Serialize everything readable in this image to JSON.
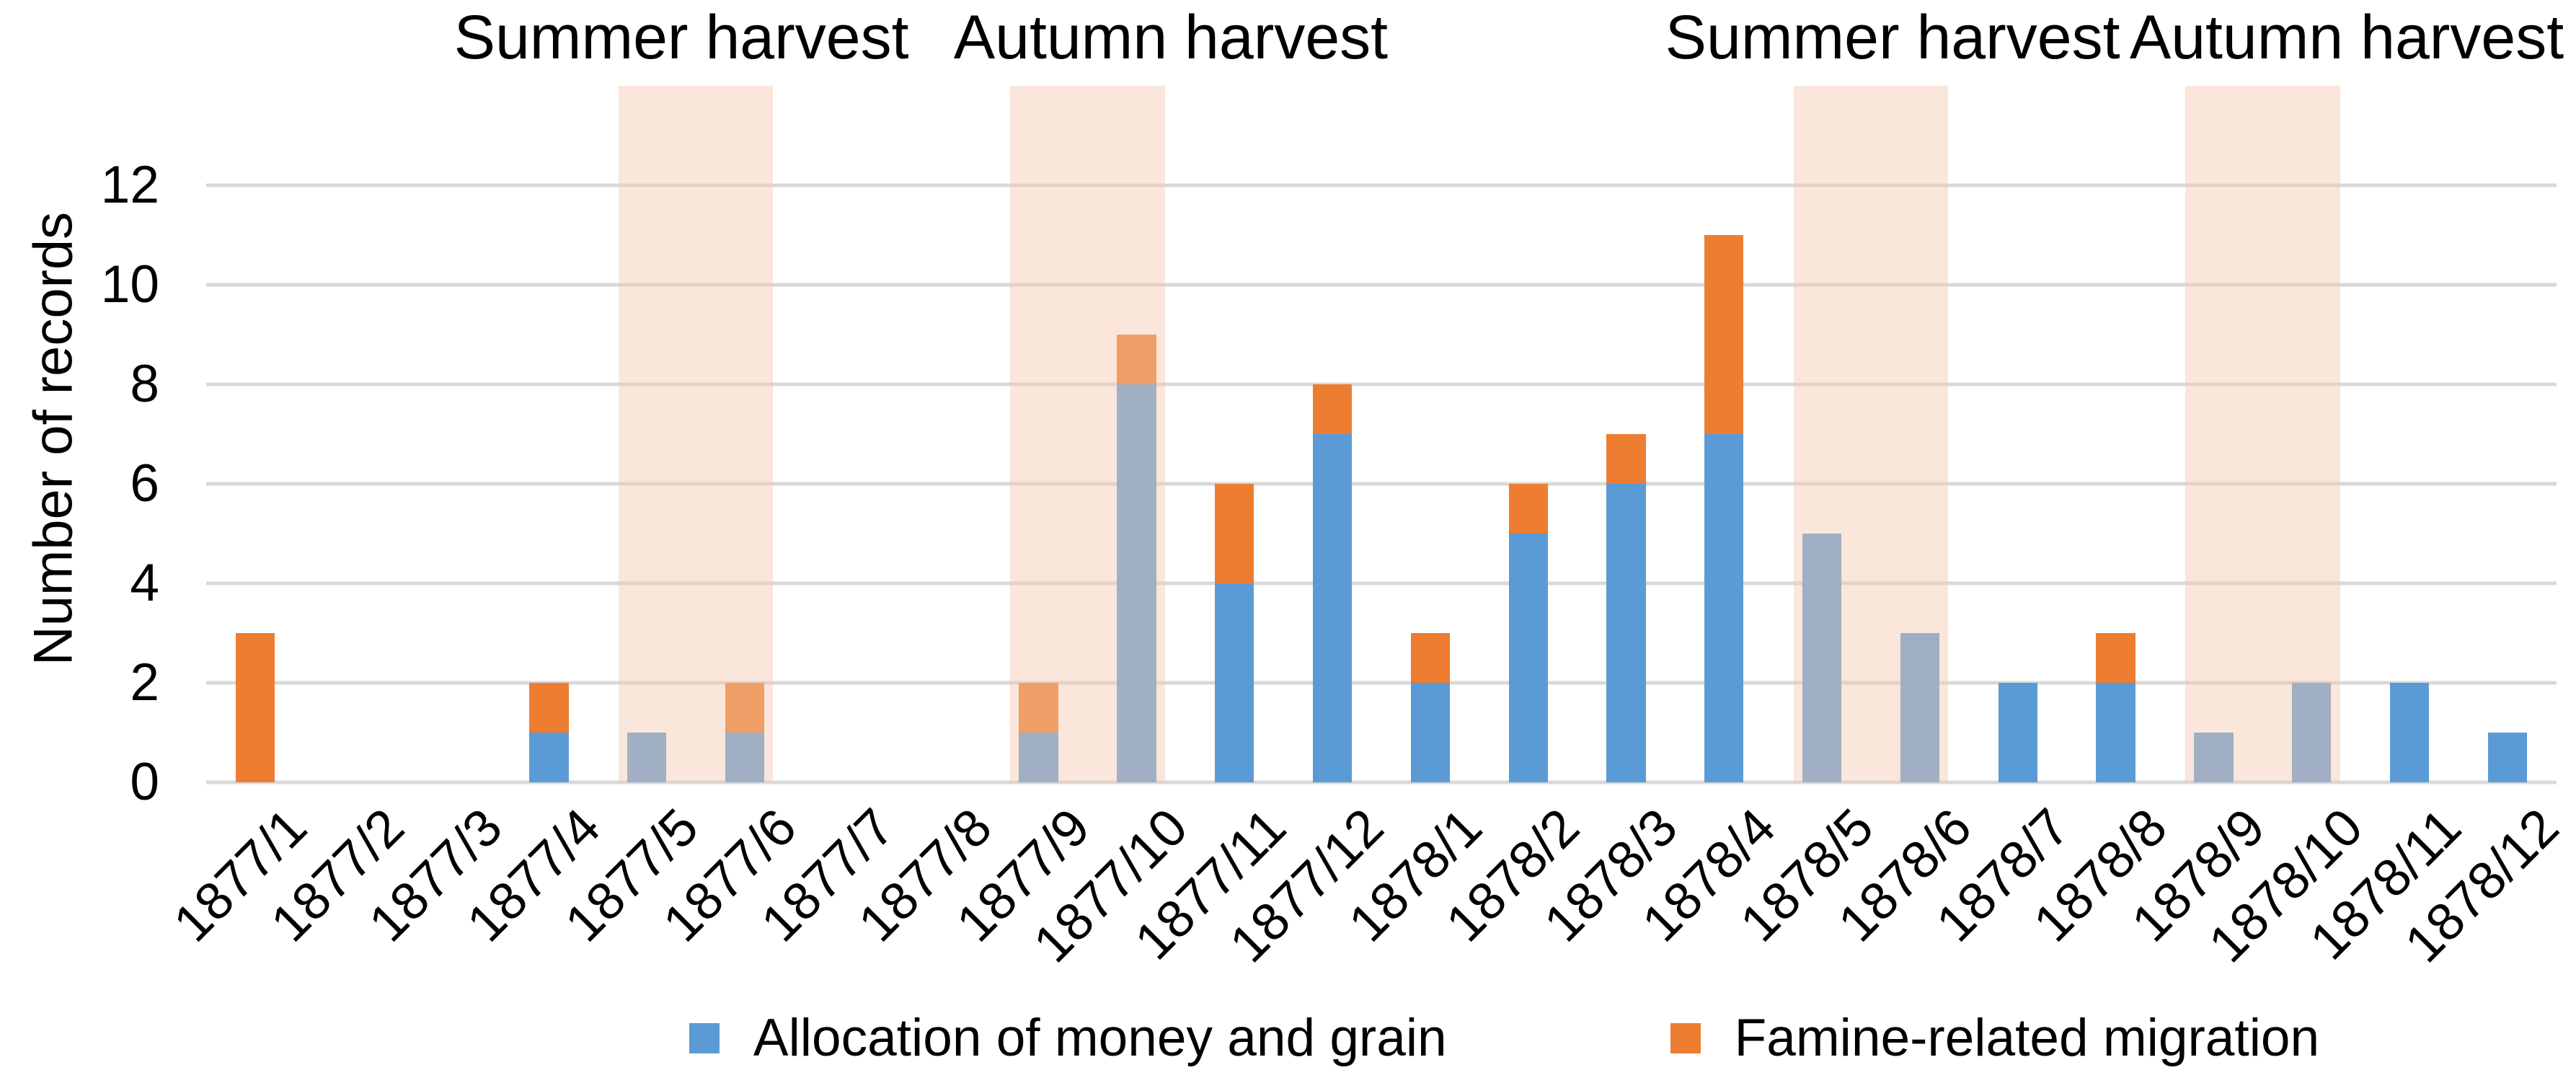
{
  "chart_data": {
    "type": "bar",
    "stacked": true,
    "title": "",
    "xlabel": "",
    "ylabel": "Number of records",
    "categories": [
      "1877/1",
      "1877/2",
      "1877/3",
      "1877/4",
      "1877/5",
      "1877/6",
      "1877/7",
      "1877/8",
      "1877/9",
      "1877/10",
      "1877/11",
      "1877/12",
      "1878/1",
      "1878/2",
      "1878/3",
      "1878/4",
      "1878/5",
      "1878/6",
      "1878/7",
      "1878/8",
      "1878/9",
      "1878/10",
      "1878/11",
      "1878/12"
    ],
    "series": [
      {
        "name": "Allocation of money and grain",
        "color": "#5B9BD5",
        "values": [
          0,
          0,
          0,
          1,
          1,
          1,
          0,
          0,
          1,
          8,
          4,
          7,
          2,
          5,
          6,
          7,
          5,
          3,
          2,
          2,
          1,
          2,
          2,
          1
        ]
      },
      {
        "name": "Famine-related migration",
        "color": "#ED7D31",
        "values": [
          3,
          0,
          0,
          1,
          0,
          1,
          0,
          0,
          1,
          1,
          2,
          1,
          1,
          1,
          1,
          4,
          0,
          0,
          0,
          1,
          0,
          0,
          0,
          0
        ]
      }
    ],
    "ylim": [
      0,
      14
    ],
    "yticks": [
      0,
      2,
      4,
      6,
      8,
      10,
      12
    ],
    "grid": true,
    "gridline_color": "#D9D9D9",
    "legend_position": "bottom",
    "harvest_bands": [
      {
        "label": "Summer harvest",
        "start_category": "1877/5",
        "end_category": "1877/6",
        "title_center_pct": 26.45
      },
      {
        "label": "Autumn harvest",
        "start_category": "1877/9",
        "end_category": "1877/10",
        "title_center_pct": 45.45
      },
      {
        "label": "Summer harvest",
        "start_category": "1878/5",
        "end_category": "1878/6",
        "title_center_pct": 73.47
      },
      {
        "label": "Autumn harvest",
        "start_category": "1878/9",
        "end_category": "1878/10",
        "title_center_pct": 91.1
      }
    ],
    "band_overlay_color": "rgba(244,199,172,0.45)"
  }
}
